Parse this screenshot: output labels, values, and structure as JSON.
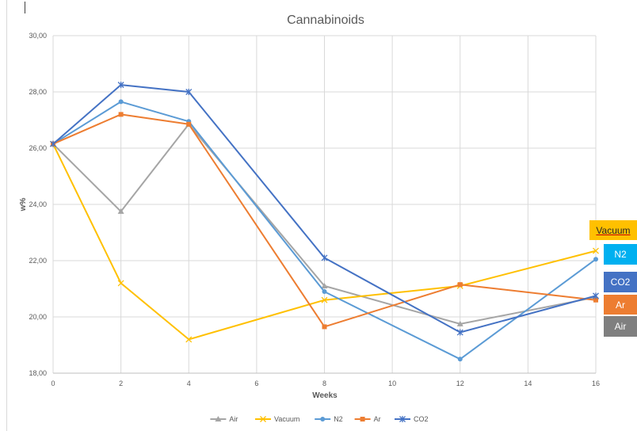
{
  "chart_data": {
    "type": "line",
    "title": "Cannabinoids",
    "xlabel": "Weeks",
    "ylabel": "w%",
    "x": [
      0,
      2,
      4,
      8,
      12,
      16
    ],
    "xlim": [
      0,
      16
    ],
    "ylim": [
      18,
      30
    ],
    "x_ticks": [
      "0",
      "2",
      "4",
      "6",
      "8",
      "10",
      "12",
      "14",
      "16"
    ],
    "y_ticks": [
      "18,00",
      "20,00",
      "22,00",
      "24,00",
      "26,00",
      "28,00",
      "30,00"
    ],
    "grid": true,
    "legend_position": "bottom",
    "series": [
      {
        "name": "Air",
        "color": "#a5a5a5",
        "marker": "triangle",
        "values": [
          26.15,
          23.75,
          26.85,
          21.1,
          19.75,
          20.7
        ]
      },
      {
        "name": "Vacuum",
        "color": "#ffc000",
        "marker": "x",
        "values": [
          26.15,
          21.2,
          19.2,
          20.6,
          21.1,
          22.35
        ]
      },
      {
        "name": "N2",
        "color": "#5b9bd5",
        "marker": "circle",
        "values": [
          26.15,
          27.65,
          26.95,
          20.9,
          18.5,
          22.05
        ]
      },
      {
        "name": "Ar",
        "color": "#ed7d31",
        "marker": "square",
        "values": [
          26.15,
          27.2,
          26.85,
          19.65,
          21.15,
          20.6
        ]
      },
      {
        "name": "CO2",
        "color": "#4472c4",
        "marker": "star",
        "values": [
          26.15,
          28.25,
          28.0,
          22.1,
          19.45,
          20.75
        ]
      }
    ],
    "end_labels": [
      {
        "text": "Vacuum",
        "color": "#ffc000"
      },
      {
        "text": "N2",
        "color": "#00b0f0"
      },
      {
        "text": "CO2",
        "color": "#4472c4"
      },
      {
        "text": "Ar",
        "color": "#ed7d31"
      },
      {
        "text": "Air",
        "color": "#7f7f7f"
      }
    ]
  }
}
